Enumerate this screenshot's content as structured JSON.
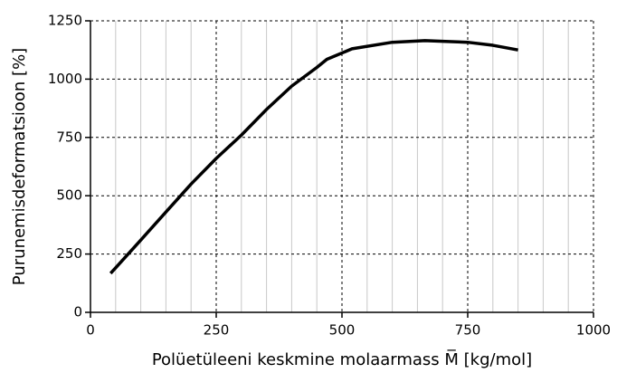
{
  "chart_data": {
    "type": "line",
    "x_label": "Polüetüleeni keskmine molaarmass M̅ [kg/mol]",
    "y_label": "Purunemisdeformatsioon [%]",
    "series": [
      {
        "color": "#000000",
        "x": [
          40,
          100,
          150,
          200,
          250,
          300,
          350,
          400,
          450,
          470,
          520,
          600,
          665,
          750,
          800,
          850
        ],
        "values": [
          167,
          310,
          430,
          550,
          660,
          760,
          870,
          970,
          1050,
          1085,
          1130,
          1158,
          1165,
          1158,
          1145,
          1125
        ]
      }
    ],
    "xlim": [
      0,
      1000
    ],
    "xticks": [
      0,
      250,
      500,
      750,
      1000
    ],
    "minor_xticks": [
      50,
      100,
      150,
      200,
      300,
      350,
      400,
      450,
      550,
      600,
      650,
      700,
      800,
      850,
      900,
      950
    ],
    "ylim": [
      0,
      1250
    ],
    "yticks": [
      0,
      250,
      500,
      750,
      1000,
      1250
    ],
    "grid": true
  }
}
